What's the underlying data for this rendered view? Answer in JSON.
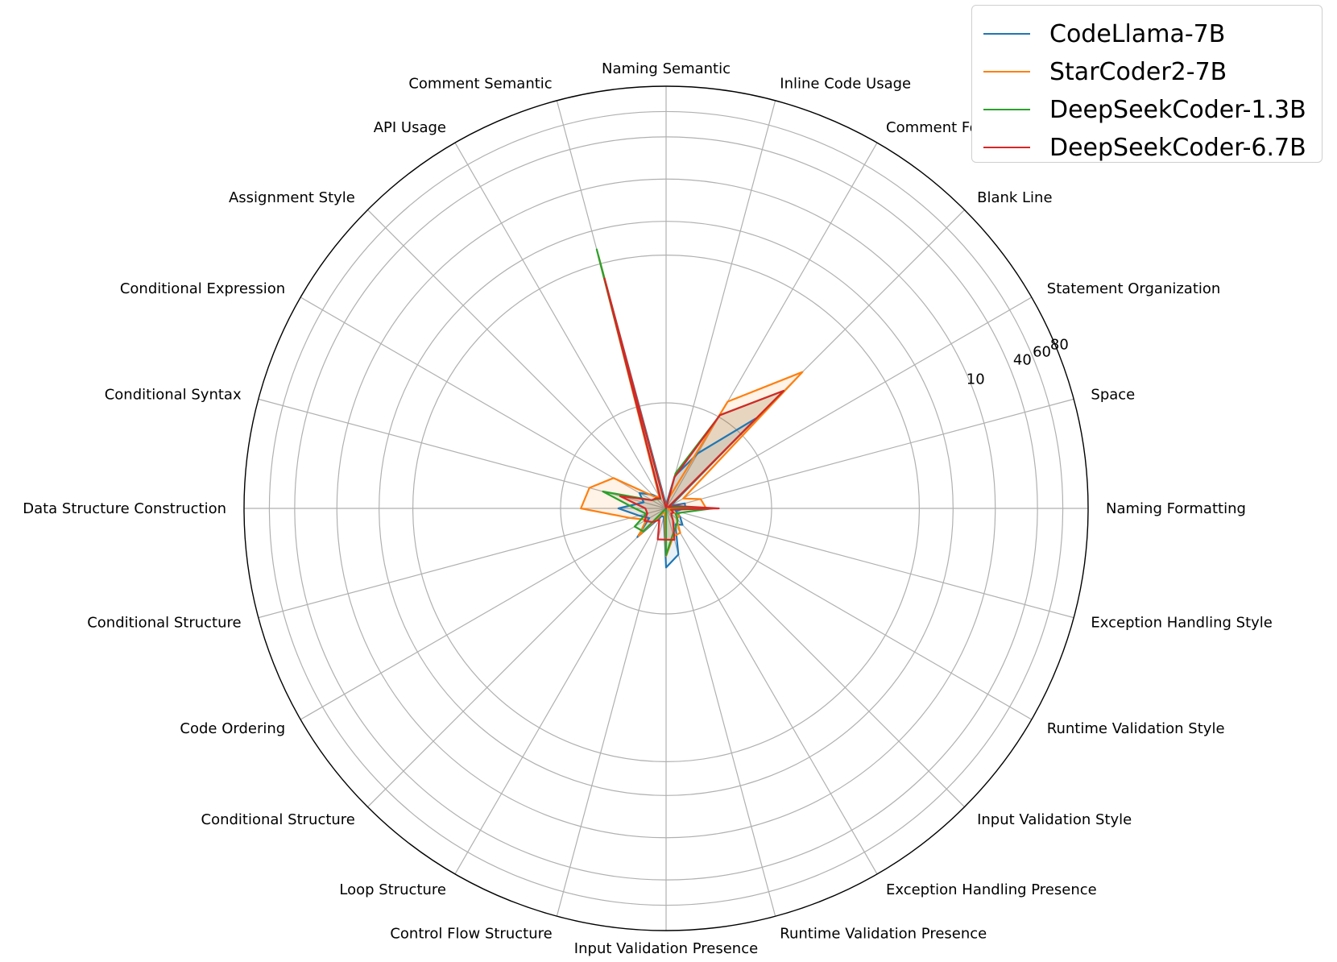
{
  "chart_data": {
    "type": "radar",
    "categories": [
      "Naming Formatting",
      "Space",
      "Statement Organization",
      "Blank Line",
      "Comment Formatting",
      "Inline Code Usage",
      "Naming Semantic",
      "Comment Semantic",
      "API Usage",
      "Assignment Style",
      "Conditional Expression",
      "Conditional Syntax",
      "Data Structure Construction",
      "Conditional Structure",
      "Code Ordering",
      "Conditional Structure",
      "Loop Structure",
      "Control Flow Structure",
      "Input Validation Presence",
      "Runtime Validation Presence",
      "Exception Handling Presence",
      "Input Validation Style",
      "Runtime Validation Style",
      "Exception Handling Style"
    ],
    "radial_ticks": [
      "10",
      "40",
      "60",
      "80"
    ],
    "radial_tick_values": [
      10,
      40,
      60,
      80
    ],
    "r_max": 100,
    "grid": true,
    "legend_position": "top-right",
    "series": [
      {
        "name": "CodeLlama-7B",
        "color": "#1f77b4",
        "values": [
          4.6,
          4.6,
          1.3,
          30.2,
          15.1,
          7.9,
          0.8,
          55.1,
          2.8,
          4.6,
          7.3,
          5.5,
          11.3,
          6.6,
          4.6,
          9.6,
          2.1,
          2.1,
          14.0,
          11.3,
          4.4,
          5.5,
          3.8,
          2.4
        ]
      },
      {
        "name": "StarCoder2-7B",
        "color": "#ff7f0e",
        "values": [
          9.5,
          8.5,
          4.7,
          45.7,
          29.2,
          2.5,
          0.2,
          62.0,
          3.2,
          4.0,
          14.4,
          18.8,
          20.2,
          8.8,
          5.4,
          9.2,
          1.1,
          1.2,
          11.3,
          6.8,
          6.7,
          3.5,
          3.6,
          0.6
        ]
      },
      {
        "name": "DeepSeekCoder-1.3B",
        "color": "#2ca02c",
        "values": [
          11.0,
          0.9,
          0.8,
          39.4,
          25.5,
          8.6,
          0.0,
          63.5,
          2.6,
          3.1,
          3.9,
          15.5,
          7.4,
          4.9,
          8.6,
          7.7,
          0.0,
          0.0,
          11.1,
          6.3,
          4.8,
          3.9,
          2.6,
          3.8
        ]
      },
      {
        "name": "DeepSeekCoder-6.7B",
        "color": "#d62728",
        "values": [
          12.5,
          2.2,
          0.6,
          39.4,
          25.5,
          7.6,
          0.0,
          56.4,
          2.7,
          3.4,
          3.9,
          11.3,
          4.9,
          4.6,
          5.9,
          4.6,
          3.2,
          7.6,
          7.4,
          7.7,
          3.3,
          1.7,
          2.0,
          1.2
        ]
      }
    ]
  }
}
